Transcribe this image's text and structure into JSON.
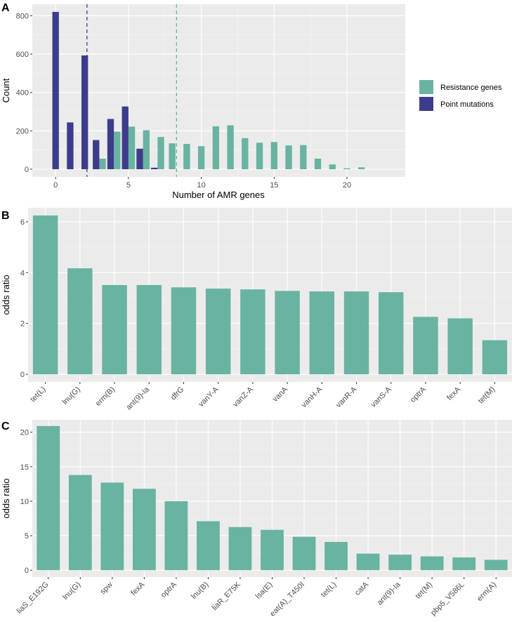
{
  "colors": {
    "resistance": "#69b3a2",
    "point": "#3c3c8a",
    "panel_bg": "#ebebeb",
    "grid": "#ffffff"
  },
  "chart_data": [
    {
      "panel": "A",
      "type": "bar",
      "xlabel": "Number of AMR genes",
      "ylabel": "Count",
      "xlim": [
        -1.6,
        24
      ],
      "ylim": [
        -40,
        860
      ],
      "xticks": [
        0,
        5,
        10,
        15,
        20
      ],
      "yticks": [
        0,
        200,
        400,
        600,
        800
      ],
      "legend": {
        "position": "right",
        "items": [
          "Resistance genes",
          "Point mutations"
        ]
      },
      "series": [
        {
          "name": "Resistance genes",
          "x": [
            3,
            4,
            5,
            6,
            7,
            8,
            9,
            10,
            11,
            12,
            13,
            14,
            15,
            16,
            17,
            18,
            19,
            20,
            21
          ],
          "values": [
            55,
            196,
            222,
            203,
            168,
            135,
            132,
            120,
            224,
            229,
            162,
            138,
            142,
            124,
            126,
            55,
            25,
            5,
            10
          ]
        },
        {
          "name": "Point mutations",
          "x": [
            0,
            1,
            2,
            3,
            4,
            5,
            6,
            7
          ],
          "values": [
            820,
            244,
            593,
            152,
            262,
            327,
            107,
            8
          ]
        }
      ],
      "vlines": [
        {
          "series": "Point mutations",
          "x": 2.15
        },
        {
          "series": "Resistance genes",
          "x": 8.3
        }
      ]
    },
    {
      "panel": "B",
      "type": "bar",
      "xlabel": "",
      "ylabel": "odds ratio",
      "ylim": [
        -0.3,
        6.55
      ],
      "yticks": [
        0,
        2,
        4,
        6
      ],
      "categories": [
        "tet(L)",
        "lnu(G)",
        "erm(B)",
        "ant(9)-Ia",
        "dfrG",
        "vanY-A",
        "vanZ-A",
        "vanA",
        "vanH-A",
        "vanR-A",
        "vanS-A",
        "optrA",
        "fexA",
        "tet(M)"
      ],
      "values": [
        6.25,
        4.17,
        3.51,
        3.51,
        3.42,
        3.37,
        3.34,
        3.28,
        3.26,
        3.26,
        3.23,
        2.26,
        2.2,
        1.34
      ]
    },
    {
      "panel": "C",
      "type": "bar",
      "xlabel": "",
      "ylabel": "odds ratio",
      "ylim": [
        -1.0,
        21.8
      ],
      "yticks": [
        0,
        5,
        10,
        15,
        20
      ],
      "categories": [
        "liaS_E192G",
        "lnu(G)",
        "spw",
        "fexA",
        "optrA",
        "lnu(B)",
        "liaR_E75K",
        "lsa(E)",
        "eat(A)_T450I",
        "tet(L)",
        "catA",
        "ant(9)-Ia",
        "tet(M)",
        "pbp5_V586L",
        "erm(A)"
      ],
      "values": [
        20.9,
        13.8,
        12.7,
        11.8,
        10.0,
        7.1,
        6.25,
        5.85,
        4.85,
        4.1,
        2.4,
        2.25,
        2.0,
        1.85,
        1.5
      ]
    }
  ]
}
